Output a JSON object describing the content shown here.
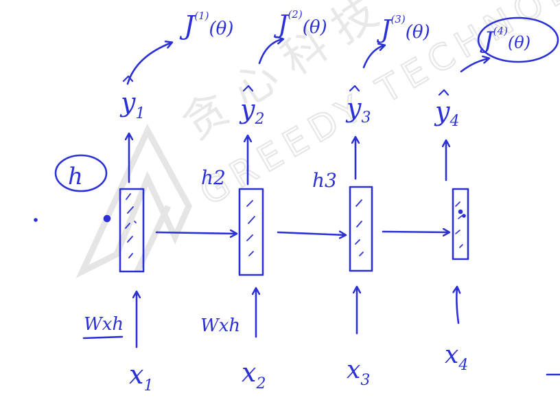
{
  "colors": {
    "ink": "#2a2fd6",
    "watermark": "#d4d4d4",
    "background": "#ffffff"
  },
  "watermark": {
    "chinese_text": "贪心科技",
    "english_text": "GREEDY TECHNOLOGY",
    "logo": "greedy-logo"
  },
  "annotations": {
    "initial_hidden": "h",
    "weight_label": "Wxh",
    "weight_label_2": "Wxh"
  },
  "steps": [
    {
      "output_cost": "J",
      "output_sup": "(1)",
      "theta": "(θ)",
      "y_hat": "y",
      "y_sub": "1",
      "hidden": "",
      "input": "x",
      "input_sub": "1"
    },
    {
      "output_cost": "J",
      "output_sup": "(2)",
      "theta": "(θ)",
      "y_hat": "y",
      "y_sub": "2",
      "hidden": "h2",
      "input": "x",
      "input_sub": "2"
    },
    {
      "output_cost": "J",
      "output_sup": "(3)",
      "theta": "(θ)",
      "y_hat": "y",
      "y_sub": "3",
      "hidden": "h3",
      "input": "x",
      "input_sub": "3"
    },
    {
      "output_cost": "J",
      "output_sup": "(4)",
      "theta": "(θ)",
      "y_hat": "y",
      "y_sub": "4",
      "hidden": "",
      "input": "x",
      "input_sub": "4"
    }
  ]
}
